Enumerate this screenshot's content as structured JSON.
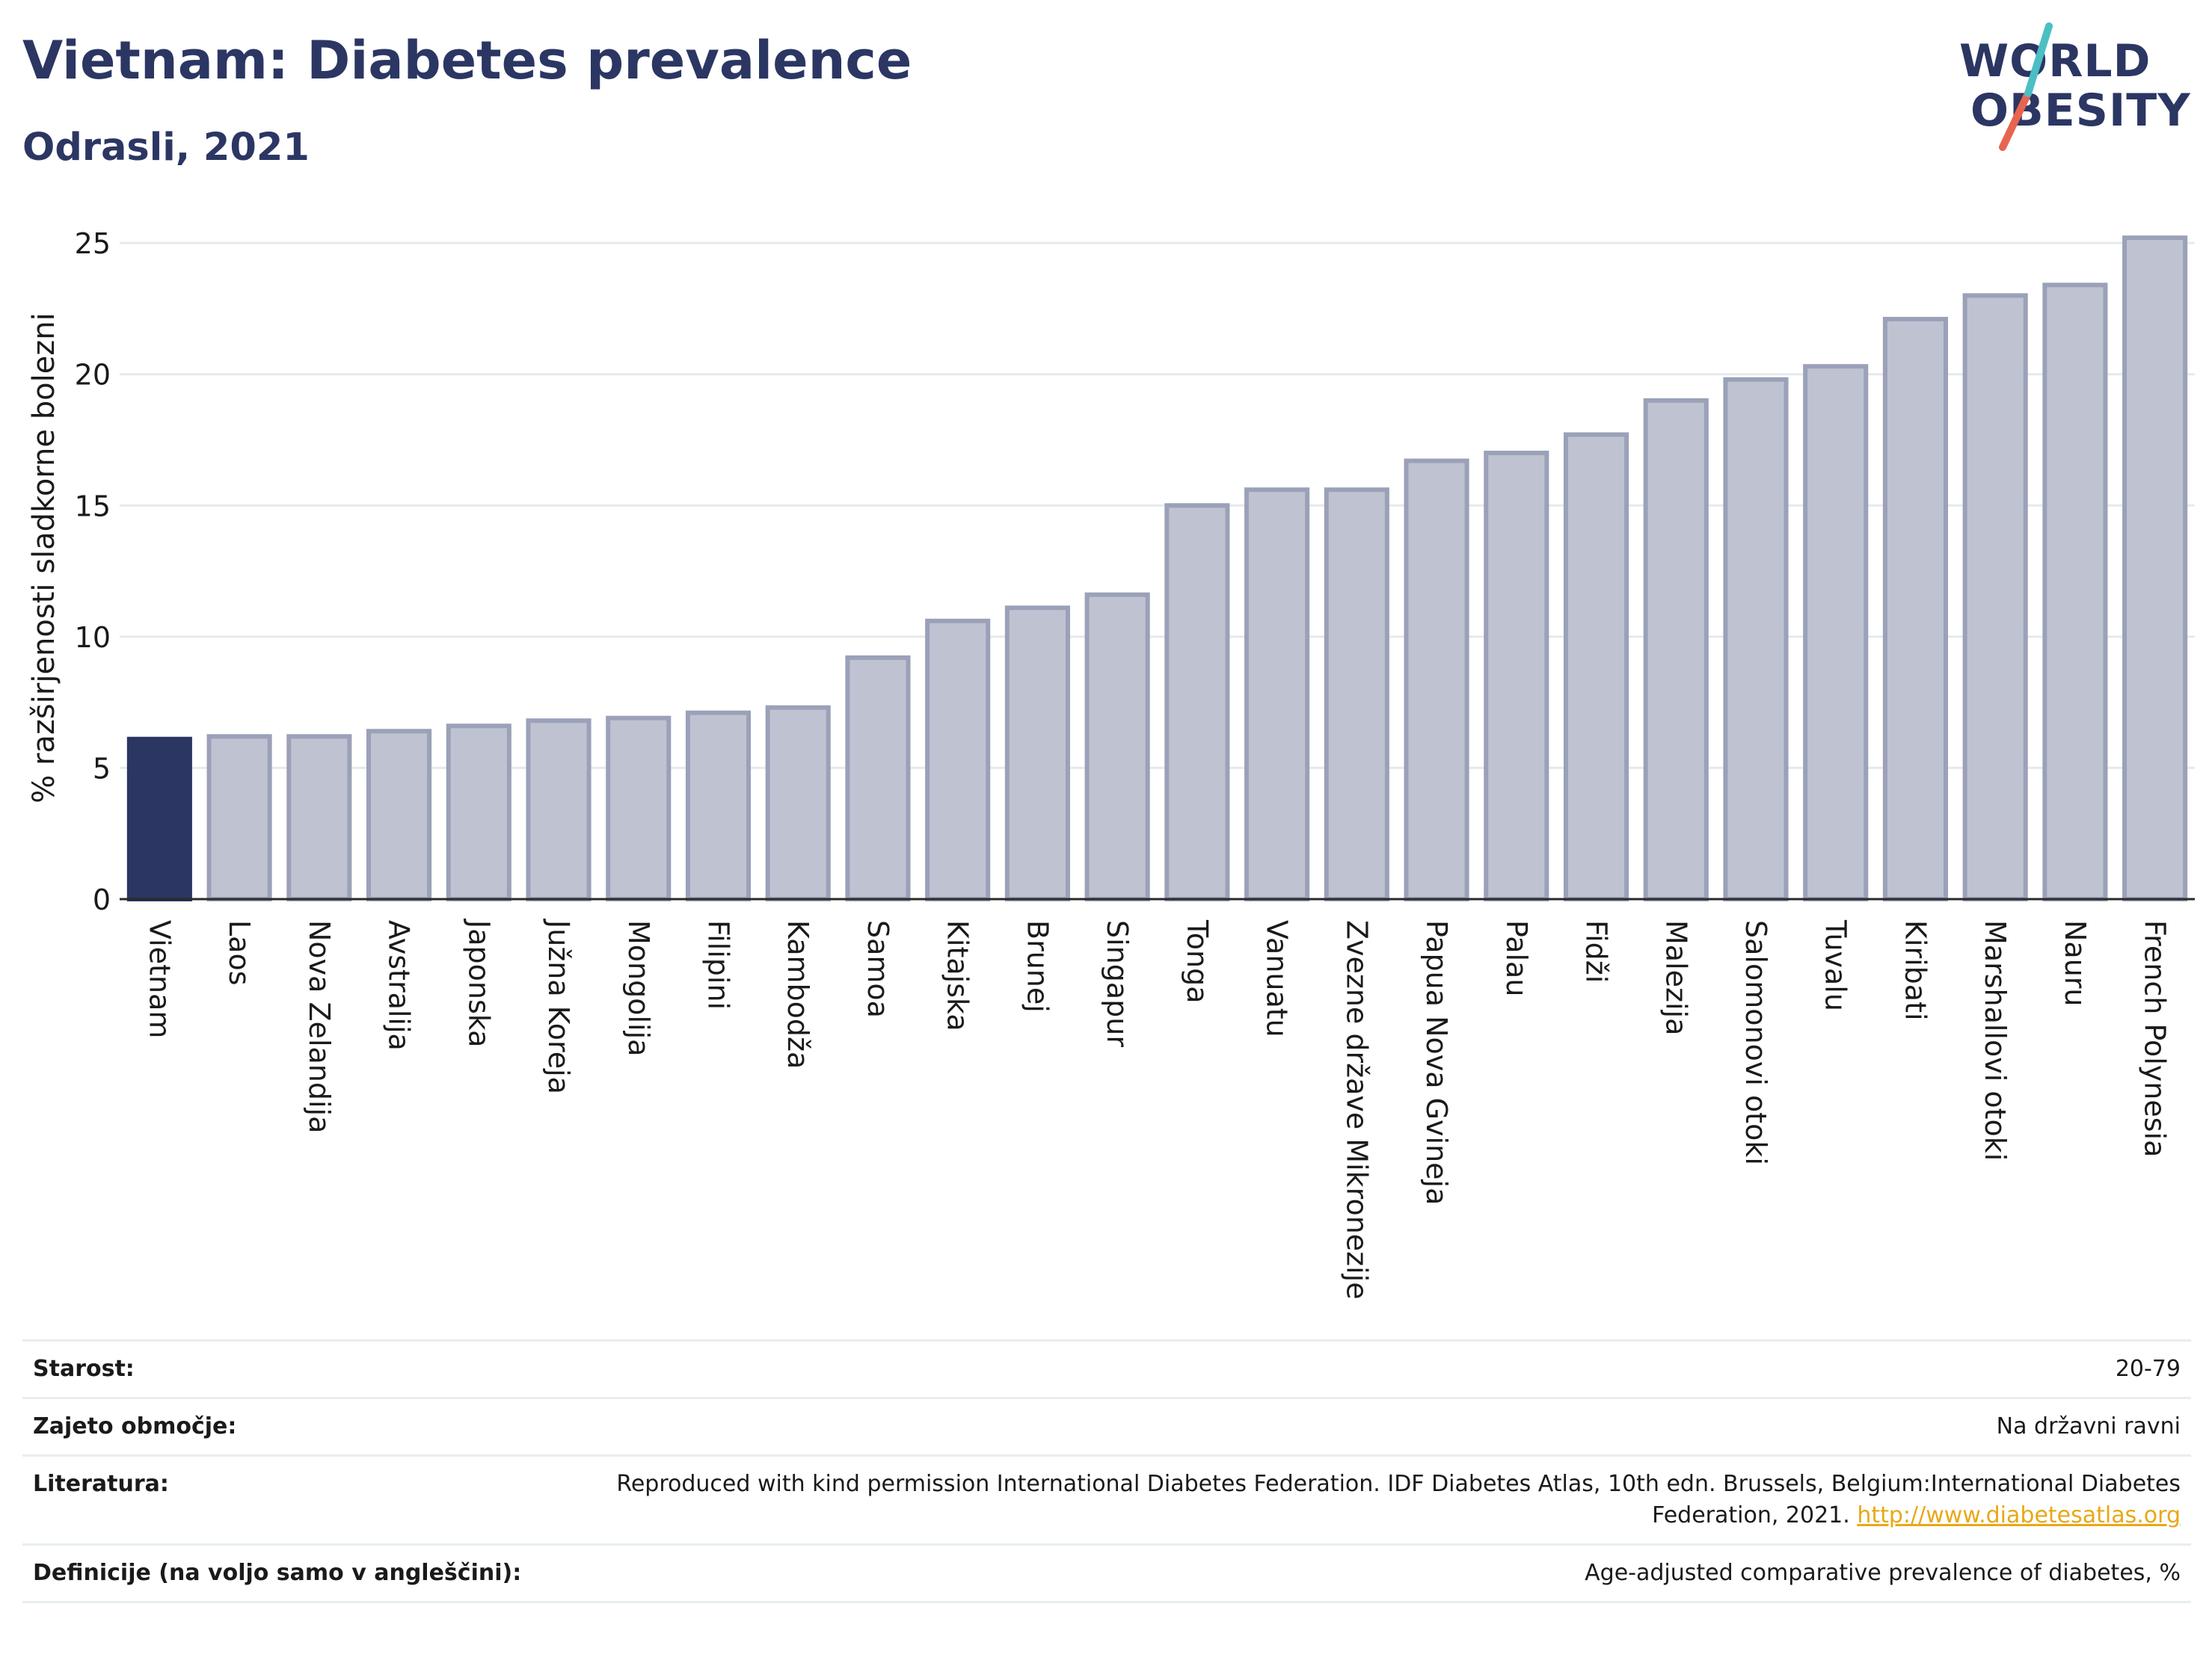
{
  "header": {
    "title": "Vietnam: Diabetes prevalence",
    "subtitle": "Odrasli, 2021"
  },
  "logo": {
    "line1": "WORLD",
    "line2": "OBESITY",
    "accent_colors": [
      "#e8644f",
      "#4bbfc3"
    ]
  },
  "chart_data": {
    "type": "bar",
    "ylabel": "% razširjenosti sladkorne bolezni",
    "ylim": [
      0,
      26
    ],
    "yticks": [
      0,
      5,
      10,
      15,
      20,
      25
    ],
    "grid": true,
    "highlight_category": "Vietnam",
    "colors": {
      "highlight": "#2b3663",
      "bar": "#bfc3d1",
      "bar_stroke": "#9aa1b8"
    },
    "categories": [
      "Vietnam",
      "Laos",
      "Nova Zelandija",
      "Avstralija",
      "Japonska",
      "Južna Koreja",
      "Mongolija",
      "Filipini",
      "Kambodža",
      "Samoa",
      "Kitajska",
      "Brunej",
      "Singapur",
      "Tonga",
      "Vanuatu",
      "Zvezne države Mikronezije",
      "Papua Nova Gvineja",
      "Palau",
      "Fidži",
      "Malezija",
      "Salomonovi otoki",
      "Tuvalu",
      "Kiribati",
      "Marshallovi otoki",
      "Nauru",
      "French Polynesia"
    ],
    "values": [
      6.1,
      6.2,
      6.2,
      6.4,
      6.6,
      6.8,
      6.9,
      7.1,
      7.3,
      9.2,
      10.6,
      11.1,
      11.6,
      15.0,
      15.6,
      15.6,
      16.7,
      17.0,
      17.7,
      19.0,
      19.8,
      20.3,
      22.1,
      23.0,
      23.4,
      25.2
    ]
  },
  "meta": {
    "rows": [
      {
        "label": "Starost:",
        "value": "20-79"
      },
      {
        "label": "Zajeto območje:",
        "value": "Na državni ravni"
      },
      {
        "label": "Literatura:",
        "value": "Reproduced with kind permission International Diabetes Federation.  IDF Diabetes Atlas, 10th edn. Brussels, Belgium:International Diabetes Federation, 2021. ",
        "link": "http://www.diabetesatlas.org"
      },
      {
        "label": "Definicije (na voljo samo v angleščini):",
        "value": "Age-adjusted comparative prevalence of diabetes, %"
      }
    ]
  }
}
